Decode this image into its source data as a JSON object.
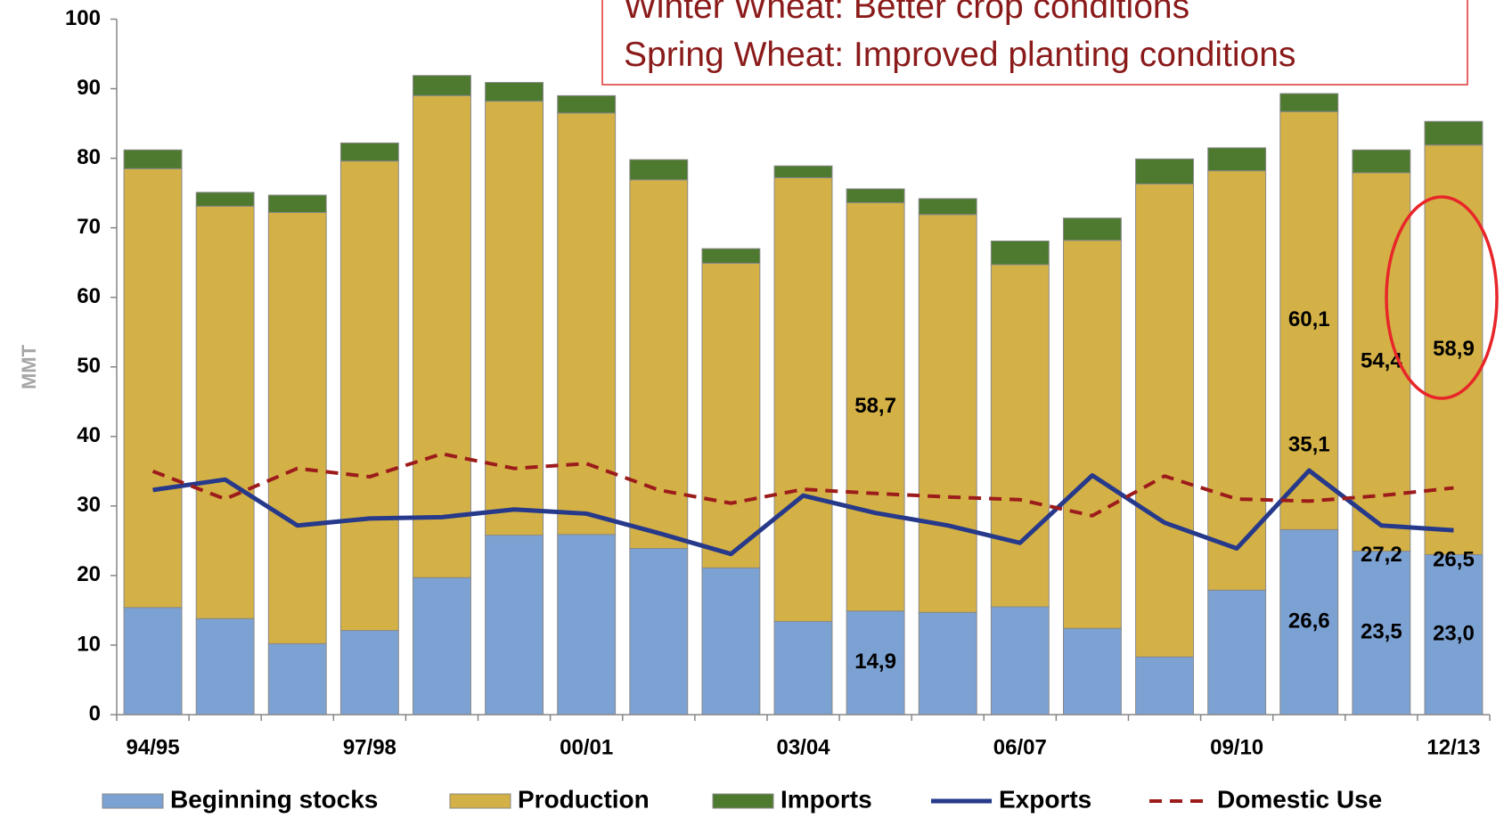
{
  "chart_data": {
    "type": "bar",
    "stacked": true,
    "annotation": [
      "Winter Wheat: Better crop conditions",
      "Spring Wheat: Improved planting conditions"
    ],
    "ylabel": "MMT",
    "categories": [
      "94/95",
      null,
      null,
      "97/98",
      null,
      null,
      "00/01",
      null,
      null,
      "03/04",
      null,
      null,
      "06/07",
      null,
      null,
      "09/10",
      null,
      null,
      "12/13"
    ],
    "ylim": [
      0,
      100
    ],
    "yticks": [
      0,
      10,
      20,
      30,
      40,
      50,
      60,
      70,
      80,
      90,
      100
    ],
    "grid": false,
    "legend": "bottom",
    "series": [
      {
        "name": "Beginning stocks",
        "type": "bar",
        "color": "#7ca2d4",
        "values": [
          15.4,
          13.8,
          10.2,
          12.1,
          19.7,
          25.8,
          25.9,
          23.9,
          21.1,
          13.4,
          14.9,
          14.7,
          15.5,
          12.4,
          8.3,
          17.9,
          26.6,
          23.5,
          23.0
        ],
        "value_labels": [
          null,
          null,
          null,
          null,
          null,
          null,
          null,
          null,
          null,
          null,
          "14,9",
          null,
          null,
          null,
          null,
          null,
          "26,6",
          "23,5",
          "23,0"
        ]
      },
      {
        "name": "Production",
        "type": "bar",
        "color": "#d4b146",
        "values": [
          63.1,
          59.3,
          62.0,
          67.5,
          69.3,
          62.4,
          60.6,
          53.0,
          43.8,
          63.8,
          58.7,
          57.2,
          49.2,
          55.8,
          68.0,
          60.3,
          60.1,
          54.4,
          58.9
        ],
        "value_labels": [
          null,
          null,
          null,
          null,
          null,
          null,
          null,
          null,
          null,
          null,
          "58,7",
          null,
          null,
          null,
          null,
          null,
          "60,1",
          "54,4",
          "58,9"
        ]
      },
      {
        "name": "Imports",
        "type": "bar",
        "color": "#4e7a2f",
        "values": [
          2.7,
          2.0,
          2.5,
          2.6,
          2.9,
          2.7,
          2.5,
          2.9,
          2.1,
          1.7,
          2.0,
          2.3,
          3.4,
          3.2,
          3.6,
          3.3,
          2.6,
          3.3,
          3.4
        ]
      },
      {
        "name": "Exports",
        "type": "line",
        "color": "#27398a",
        "dashed": false,
        "values": [
          32.3,
          33.8,
          27.2,
          28.2,
          28.4,
          29.5,
          28.9,
          26.1,
          23.1,
          31.5,
          29.0,
          27.2,
          24.7,
          34.4,
          27.6,
          23.9,
          35.1,
          27.2,
          26.5
        ],
        "value_labels": [
          null,
          null,
          null,
          null,
          null,
          null,
          null,
          null,
          null,
          null,
          null,
          null,
          null,
          null,
          null,
          null,
          "35,1",
          "27,2",
          "26,5"
        ]
      },
      {
        "name": "Domestic Use",
        "type": "line",
        "color": "#9c1c1c",
        "dashed": true,
        "values": [
          35.0,
          31.0,
          35.4,
          34.2,
          37.5,
          35.4,
          36.1,
          32.3,
          30.4,
          32.4,
          31.8,
          31.3,
          30.9,
          28.6,
          34.3,
          31.0,
          30.7,
          31.5,
          32.6
        ]
      }
    ]
  }
}
